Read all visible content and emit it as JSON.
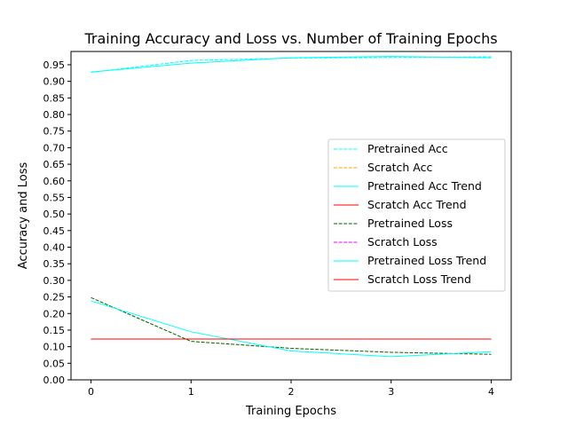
{
  "chart_data": {
    "type": "line",
    "title": "Training Accuracy and Loss vs. Number of Training Epochs",
    "xlabel": "Training Epochs",
    "ylabel": "Accuracy and Loss",
    "xlim": [
      -0.2,
      4.2
    ],
    "ylim": [
      0.0,
      0.99
    ],
    "x": [
      0,
      1,
      2,
      3,
      4
    ],
    "xticks": [
      "0",
      "1",
      "2",
      "3",
      "4"
    ],
    "yticks": [
      "0.00",
      "0.05",
      "0.10",
      "0.15",
      "0.20",
      "0.25",
      "0.30",
      "0.35",
      "0.40",
      "0.45",
      "0.50",
      "0.55",
      "0.60",
      "0.65",
      "0.70",
      "0.75",
      "0.80",
      "0.85",
      "0.90",
      "0.95"
    ],
    "legend_position": "center-right",
    "grid": false,
    "series": [
      {
        "name": "Pretrained Acc",
        "values": [
          0.927,
          0.963,
          0.97,
          0.972,
          0.974
        ],
        "color": "#00ffff",
        "style": "dashed"
      },
      {
        "name": "Scratch Acc",
        "values": [
          null,
          null,
          null,
          null,
          null
        ],
        "color": "#ffa500",
        "style": "dashed"
      },
      {
        "name": "Pretrained Acc Trend",
        "values": [
          0.928,
          0.955,
          0.971,
          0.975,
          0.971
        ],
        "color": "#00ffff",
        "style": "solid"
      },
      {
        "name": "Scratch Acc Trend",
        "values": [
          null,
          null,
          null,
          null,
          null
        ],
        "color": "#ff0000",
        "style": "solid"
      },
      {
        "name": "Pretrained Loss",
        "values": [
          0.248,
          0.116,
          0.095,
          0.083,
          0.077
        ],
        "color": "#006400",
        "style": "dashed"
      },
      {
        "name": "Scratch Loss",
        "values": [
          null,
          null,
          null,
          null,
          null
        ],
        "color": "#ff00ff",
        "style": "dashed"
      },
      {
        "name": "Pretrained Loss Trend",
        "values": [
          0.238,
          0.145,
          0.087,
          0.07,
          0.085
        ],
        "color": "#00ffff",
        "style": "solid"
      },
      {
        "name": "Scratch Loss Trend",
        "values": [
          0.123,
          0.123,
          0.123,
          0.123,
          0.123
        ],
        "color": "#ff0000",
        "style": "solid"
      }
    ]
  }
}
